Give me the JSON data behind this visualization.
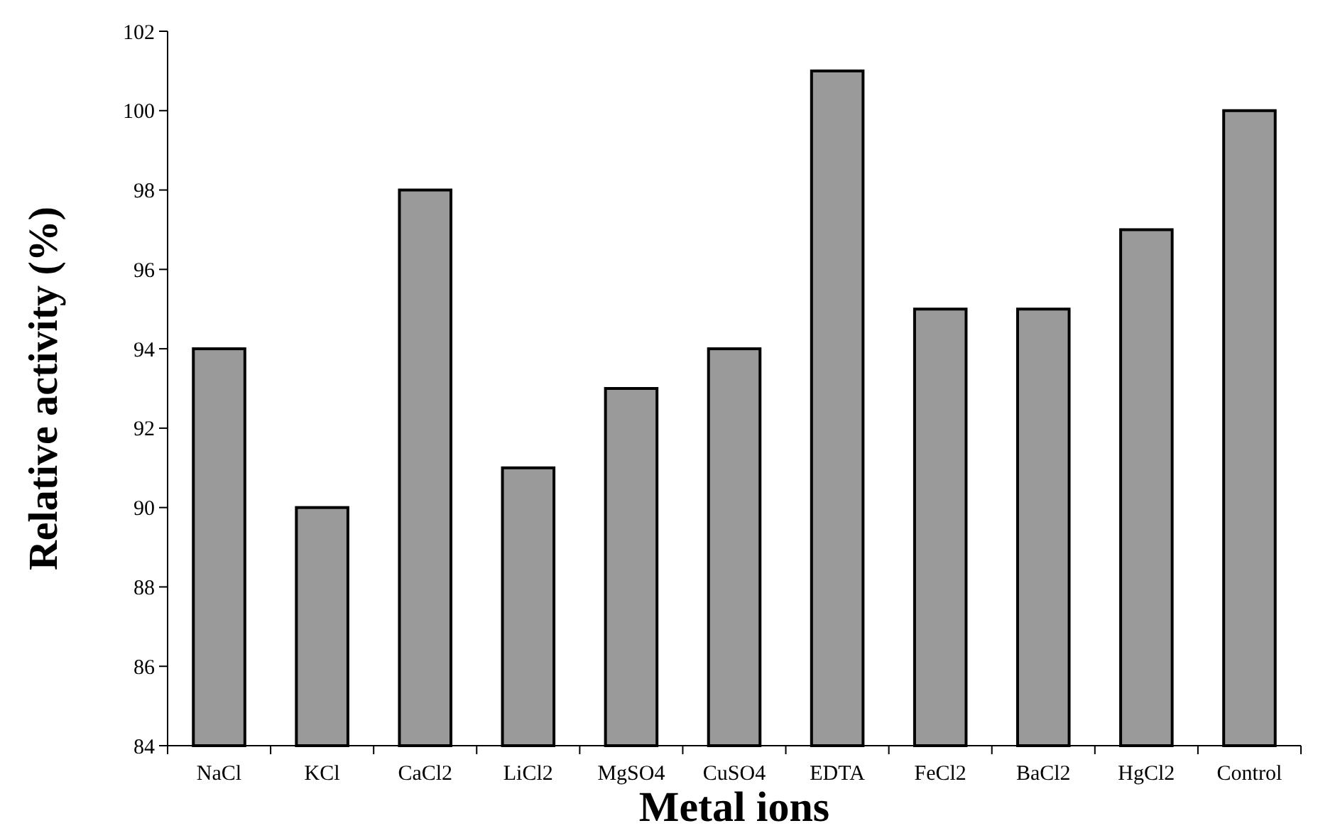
{
  "chart_data": {
    "type": "bar",
    "xlabel": "Metal ions",
    "ylabel": "Relative activity (%)",
    "categories": [
      "NaCl",
      "KCl",
      "CaCl2",
      "LiCl2",
      "MgSO4",
      "CuSO4",
      "EDTA",
      "FeCl2",
      "BaCl2",
      "HgCl2",
      "Control"
    ],
    "values": [
      94,
      90,
      98,
      91,
      93,
      94,
      101,
      95,
      95,
      97,
      100
    ],
    "color": "#9a9a9a",
    "ylim": [
      84,
      102
    ],
    "yticks": [
      84,
      86,
      88,
      90,
      92,
      94,
      96,
      98,
      100,
      102
    ],
    "grid": false
  }
}
